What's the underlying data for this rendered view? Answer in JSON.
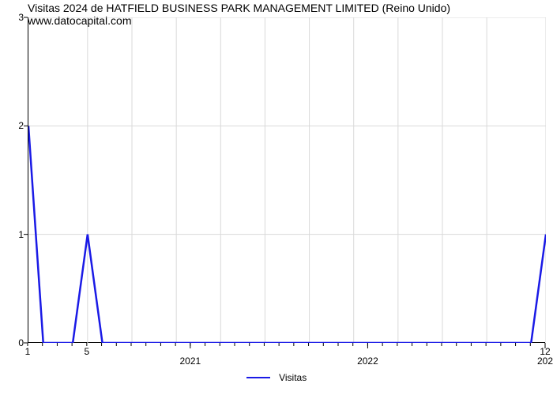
{
  "title": "Visitas 2024 de HATFIELD BUSINESS PARK MANAGEMENT LIMITED (Reino Unido) www.datocapital.com",
  "chart": {
    "type": "line",
    "background_color": "#ffffff",
    "grid_color": "#d9d9d9",
    "axis_color": "#000000",
    "line_color": "#1a1ae6",
    "line_width": 2.5,
    "title_fontsize": 14,
    "tick_fontsize": 12,
    "xlim": [
      1,
      36
    ],
    "ylim": [
      0,
      3
    ],
    "ytick_step": 1,
    "y_ticks": [
      0,
      1,
      2,
      3
    ],
    "x_major_ticks": [
      {
        "pos": 12,
        "label": "2021"
      },
      {
        "pos": 24,
        "label": "2022"
      },
      {
        "pos": 36,
        "label": "202"
      }
    ],
    "x_minor_ticks_with_label": [
      {
        "pos": 1,
        "label": "1"
      },
      {
        "pos": 5,
        "label": "5"
      },
      {
        "pos": 36,
        "label": "12"
      }
    ],
    "x_minor_tick_positions": [
      1,
      2,
      3,
      4,
      5,
      6,
      7,
      8,
      9,
      10,
      11,
      12,
      13,
      14,
      15,
      16,
      17,
      18,
      19,
      20,
      21,
      22,
      23,
      24,
      25,
      26,
      27,
      28,
      29,
      30,
      31,
      32,
      33,
      34,
      35,
      36
    ],
    "vgrid_positions": [
      5,
      8,
      11,
      14,
      17,
      20,
      23,
      26,
      29,
      32,
      36
    ],
    "x_points": [
      1,
      2,
      3,
      4,
      5,
      6,
      7,
      8,
      9,
      10,
      11,
      12,
      13,
      14,
      15,
      16,
      17,
      18,
      19,
      20,
      21,
      22,
      23,
      24,
      25,
      26,
      27,
      28,
      29,
      30,
      31,
      32,
      33,
      34,
      35,
      36
    ],
    "y_points": [
      2,
      0,
      0,
      0,
      1,
      0,
      0,
      0,
      0,
      0,
      0,
      0,
      0,
      0,
      0,
      0,
      0,
      0,
      0,
      0,
      0,
      0,
      0,
      0,
      0,
      0,
      0,
      0,
      0,
      0,
      0,
      0,
      0,
      0,
      0,
      1
    ]
  },
  "legend": {
    "label": "Visitas",
    "line_color": "#1a1ae6"
  }
}
